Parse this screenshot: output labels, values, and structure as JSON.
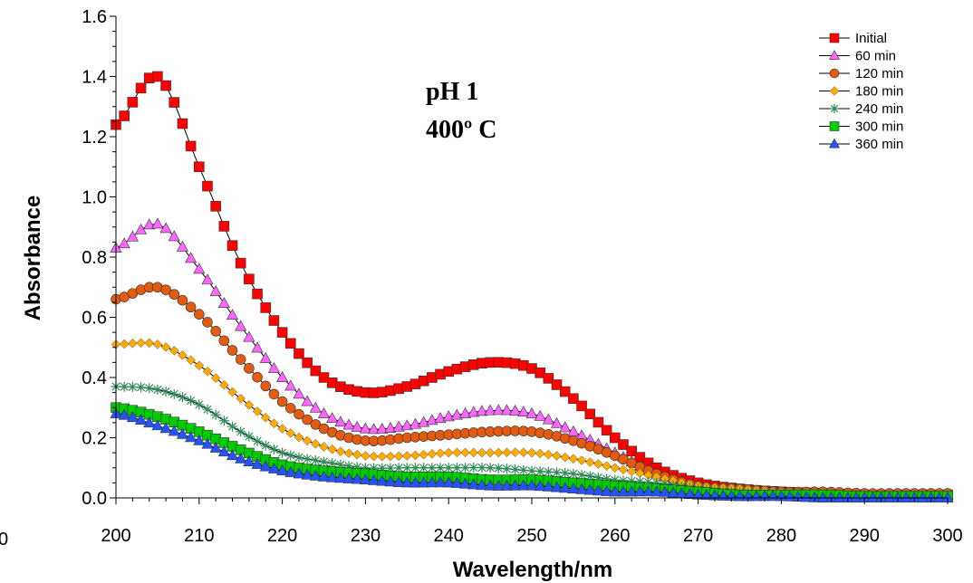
{
  "chart_data": {
    "type": "line",
    "xlabel": "Wavelength/nm",
    "ylabel": "Absorbance",
    "xlim": [
      200,
      300
    ],
    "ylim": [
      0,
      1.6
    ],
    "xticks": [
      200,
      210,
      220,
      230,
      240,
      250,
      260,
      270,
      280,
      290,
      300
    ],
    "yticks": [
      "0.0",
      "0.2",
      "0.4",
      "0.6",
      "0.8",
      "1.0",
      "1.2",
      "1.4",
      "1.6"
    ],
    "stray_tick_label": "0",
    "annotations": [
      "pH 1",
      "400º C"
    ],
    "legend_position": "top-right",
    "grid": false,
    "x": [
      200,
      205,
      210,
      215,
      220,
      225,
      230,
      235,
      240,
      245,
      250,
      255,
      260,
      265,
      270,
      275,
      280,
      285,
      290,
      295,
      300
    ],
    "series": [
      {
        "name": "Initial",
        "marker": "square",
        "color": "#ff0000",
        "values": [
          1.24,
          1.4,
          1.1,
          0.78,
          0.55,
          0.4,
          0.35,
          0.37,
          0.42,
          0.45,
          0.43,
          0.33,
          0.2,
          0.1,
          0.05,
          0.03,
          0.02,
          0.015,
          0.01,
          0.01,
          0.01
        ]
      },
      {
        "name": "60 min",
        "marker": "triangle",
        "color": "#ff66ff",
        "values": [
          0.83,
          0.91,
          0.76,
          0.57,
          0.4,
          0.28,
          0.23,
          0.24,
          0.27,
          0.29,
          0.28,
          0.22,
          0.15,
          0.08,
          0.04,
          0.02,
          0.015,
          0.01,
          0.01,
          0.01,
          0.01
        ]
      },
      {
        "name": "120 min",
        "marker": "circle",
        "color": "#e25b0f",
        "values": [
          0.66,
          0.7,
          0.61,
          0.46,
          0.32,
          0.23,
          0.19,
          0.2,
          0.21,
          0.22,
          0.22,
          0.19,
          0.14,
          0.08,
          0.04,
          0.03,
          0.02,
          0.02,
          0.015,
          0.015,
          0.015
        ]
      },
      {
        "name": "180 min",
        "marker": "diamond",
        "color": "#ffaa00",
        "values": [
          0.51,
          0.51,
          0.44,
          0.33,
          0.23,
          0.17,
          0.14,
          0.14,
          0.15,
          0.15,
          0.15,
          0.13,
          0.1,
          0.07,
          0.04,
          0.03,
          0.02,
          0.015,
          0.01,
          0.01,
          0.01
        ]
      },
      {
        "name": "240 min",
        "marker": "star",
        "color": "#2e8b57",
        "values": [
          0.37,
          0.36,
          0.31,
          0.22,
          0.15,
          0.12,
          0.1,
          0.1,
          0.1,
          0.1,
          0.09,
          0.08,
          0.06,
          0.05,
          0.03,
          0.02,
          0.015,
          0.01,
          0.01,
          0.01,
          0.01
        ]
      },
      {
        "name": "300 min",
        "marker": "square",
        "color": "#00cc00",
        "values": [
          0.3,
          0.27,
          0.22,
          0.16,
          0.11,
          0.09,
          0.08,
          0.07,
          0.07,
          0.06,
          0.06,
          0.05,
          0.04,
          0.03,
          0.02,
          0.01,
          0.01,
          0.01,
          0.005,
          0.005,
          0.005
        ]
      },
      {
        "name": "360 min",
        "marker": "triangle",
        "color": "#2255ff",
        "values": [
          0.28,
          0.24,
          0.19,
          0.13,
          0.09,
          0.07,
          0.06,
          0.05,
          0.05,
          0.04,
          0.04,
          0.03,
          0.02,
          0.02,
          0.01,
          0.005,
          0.005,
          0.0,
          0.0,
          0.0,
          0.0
        ]
      }
    ]
  }
}
